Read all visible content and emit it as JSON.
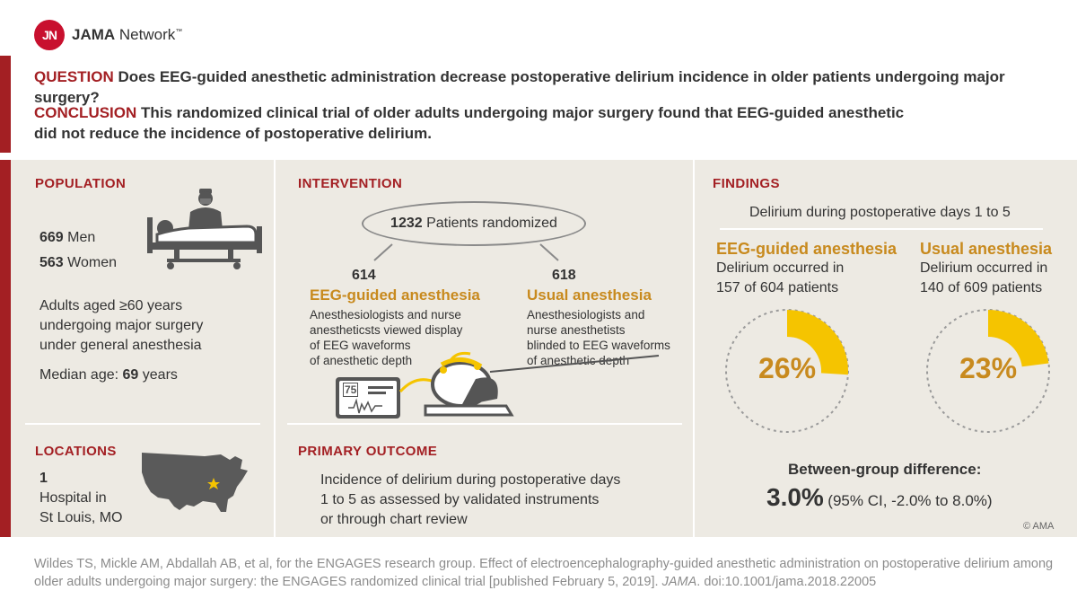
{
  "header": {
    "logo_mark": "JN",
    "logo_brand": "JAMA",
    "logo_network": "Network",
    "logo_tm": "™"
  },
  "question": {
    "label": "QUESTION",
    "text": "Does EEG-guided anesthetic administration decrease postoperative delirium incidence in older patients undergoing major surgery?"
  },
  "conclusion": {
    "label": "CONCLUSION",
    "line1": "This randomized clinical trial of older adults undergoing major surgery found that EEG-guided anesthetic",
    "line2": "did not reduce the incidence of postoperative delirium."
  },
  "population": {
    "title": "POPULATION",
    "men_count": "669",
    "men_label": "Men",
    "women_count": "563",
    "women_label": "Women",
    "desc_line1": "Adults aged ≥60 years",
    "desc_line2": "undergoing major surgery",
    "desc_line3": "under general anesthesia",
    "median_label": "Median age:",
    "median_value": "69",
    "median_unit": "years"
  },
  "locations": {
    "title": "LOCATIONS",
    "count": "1",
    "line1": "Hospital in",
    "line2": "St Louis, MO"
  },
  "intervention": {
    "title": "INTERVENTION",
    "total_count": "1232",
    "total_label": "Patients randomized",
    "arm1": {
      "count": "614",
      "name": "EEG-guided anesthesia",
      "desc": [
        "Anesthesiologists and nurse",
        "anestheticsts viewed display",
        "of EEG waveforms",
        "of anesthetic depth"
      ]
    },
    "arm2": {
      "count": "618",
      "name": "Usual anesthesia",
      "desc": [
        "Anesthesiologists and",
        "nurse anesthetists",
        "blinded to EEG waveforms",
        "of anesthetic depth"
      ]
    },
    "monitor_value": "75"
  },
  "primary_outcome": {
    "title": "PRIMARY OUTCOME",
    "line1": "Incidence of delirium during postoperative days",
    "line2": "1 to 5 as assessed by validated instruments",
    "line3": "or through chart review"
  },
  "findings": {
    "title": "FINDINGS",
    "subtitle": "Delirium during postoperative days 1 to 5",
    "group1": {
      "name": "EEG-guided anesthesia",
      "line1": "Delirium occurred in",
      "line2": "157 of 604 patients",
      "percent_label": "26%",
      "fraction": 0.26
    },
    "group2": {
      "name": "Usual anesthesia",
      "line1": "Delirium occurred in",
      "line2": "140 of 609 patients",
      "percent_label": "23%",
      "fraction": 0.23
    },
    "diff_label": "Between-group difference:",
    "diff_value": "3.0%",
    "diff_ci": "(95% CI, -2.0% to 8.0%)",
    "copyright": "© AMA"
  },
  "citation": {
    "part1": "Wildes TS, Mickle AM, Abdallah AB, et al, for the ENGAGES research group. Effect of electroencephalography-guided anesthetic administration on postoperative delirium among older adults undergoing major surgery: the ENGAGES randomized clinical trial [published February 5, 2019].",
    "journal": "JAMA",
    "doi": ". doi:10.1001/jama.2018.22005"
  },
  "colors": {
    "brand_red": "#c8102e",
    "section_red": "#a31f23",
    "gold": "#c88a1e",
    "yellow": "#f5c400",
    "panel_bg": "#edeae3",
    "icon_gray": "#555555"
  }
}
